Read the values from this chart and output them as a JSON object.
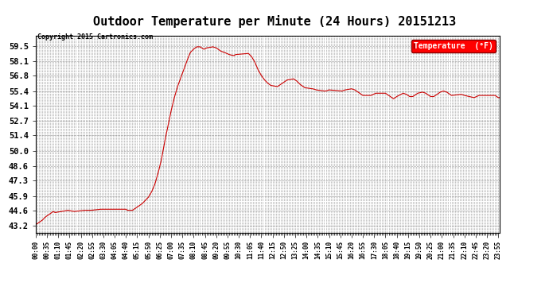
{
  "title": "Outdoor Temperature per Minute (24 Hours) 20151213",
  "copyright_text": "Copyright 2015 Cartronics.com",
  "legend_label": "Temperature  (°F)",
  "line_color": "#cc0000",
  "background_color": "#ffffff",
  "grid_color": "#999999",
  "yticks": [
    43.2,
    44.6,
    45.9,
    47.3,
    48.6,
    50.0,
    51.4,
    52.7,
    54.1,
    55.4,
    56.8,
    58.1,
    59.5
  ],
  "ylim": [
    42.6,
    60.4
  ],
  "total_minutes": 1440,
  "key_points": [
    [
      0,
      43.3
    ],
    [
      10,
      43.5
    ],
    [
      20,
      43.7
    ],
    [
      30,
      44.0
    ],
    [
      50,
      44.4
    ],
    [
      55,
      44.5
    ],
    [
      60,
      44.4
    ],
    [
      80,
      44.5
    ],
    [
      100,
      44.6
    ],
    [
      120,
      44.5
    ],
    [
      150,
      44.6
    ],
    [
      170,
      44.6
    ],
    [
      200,
      44.7
    ],
    [
      280,
      44.7
    ],
    [
      285,
      44.6
    ],
    [
      300,
      44.6
    ],
    [
      310,
      44.8
    ],
    [
      320,
      45.0
    ],
    [
      330,
      45.2
    ],
    [
      340,
      45.5
    ],
    [
      350,
      45.8
    ],
    [
      360,
      46.3
    ],
    [
      370,
      47.0
    ],
    [
      380,
      48.0
    ],
    [
      390,
      49.2
    ],
    [
      400,
      50.8
    ],
    [
      410,
      52.2
    ],
    [
      420,
      53.6
    ],
    [
      430,
      54.8
    ],
    [
      440,
      55.8
    ],
    [
      450,
      56.6
    ],
    [
      460,
      57.4
    ],
    [
      470,
      58.2
    ],
    [
      480,
      58.9
    ],
    [
      490,
      59.2
    ],
    [
      500,
      59.4
    ],
    [
      510,
      59.4
    ],
    [
      515,
      59.3
    ],
    [
      520,
      59.2
    ],
    [
      525,
      59.2
    ],
    [
      530,
      59.3
    ],
    [
      550,
      59.4
    ],
    [
      560,
      59.3
    ],
    [
      575,
      59.0
    ],
    [
      585,
      58.9
    ],
    [
      600,
      58.7
    ],
    [
      615,
      58.6
    ],
    [
      620,
      58.7
    ],
    [
      660,
      58.8
    ],
    [
      670,
      58.5
    ],
    [
      680,
      58.0
    ],
    [
      690,
      57.3
    ],
    [
      700,
      56.8
    ],
    [
      710,
      56.4
    ],
    [
      720,
      56.1
    ],
    [
      730,
      55.9
    ],
    [
      750,
      55.8
    ],
    [
      760,
      56.0
    ],
    [
      780,
      56.4
    ],
    [
      800,
      56.5
    ],
    [
      810,
      56.3
    ],
    [
      820,
      56.0
    ],
    [
      835,
      55.7
    ],
    [
      860,
      55.6
    ],
    [
      870,
      55.5
    ],
    [
      895,
      55.4
    ],
    [
      900,
      55.4
    ],
    [
      910,
      55.5
    ],
    [
      950,
      55.4
    ],
    [
      960,
      55.5
    ],
    [
      980,
      55.6
    ],
    [
      990,
      55.5
    ],
    [
      1000,
      55.3
    ],
    [
      1010,
      55.1
    ],
    [
      1015,
      55.0
    ],
    [
      1040,
      55.0
    ],
    [
      1055,
      55.2
    ],
    [
      1085,
      55.2
    ],
    [
      1095,
      55.0
    ],
    [
      1100,
      54.9
    ],
    [
      1110,
      54.7
    ],
    [
      1120,
      54.9
    ],
    [
      1140,
      55.2
    ],
    [
      1150,
      55.1
    ],
    [
      1160,
      54.9
    ],
    [
      1170,
      54.9
    ],
    [
      1185,
      55.2
    ],
    [
      1200,
      55.3
    ],
    [
      1210,
      55.2
    ],
    [
      1225,
      54.9
    ],
    [
      1235,
      54.9
    ],
    [
      1255,
      55.3
    ],
    [
      1265,
      55.4
    ],
    [
      1275,
      55.3
    ],
    [
      1290,
      55.0
    ],
    [
      1320,
      55.1
    ],
    [
      1330,
      55.0
    ],
    [
      1345,
      54.9
    ],
    [
      1360,
      54.8
    ],
    [
      1375,
      55.0
    ],
    [
      1395,
      55.0
    ],
    [
      1425,
      55.0
    ],
    [
      1435,
      54.8
    ],
    [
      1439,
      54.8
    ]
  ]
}
